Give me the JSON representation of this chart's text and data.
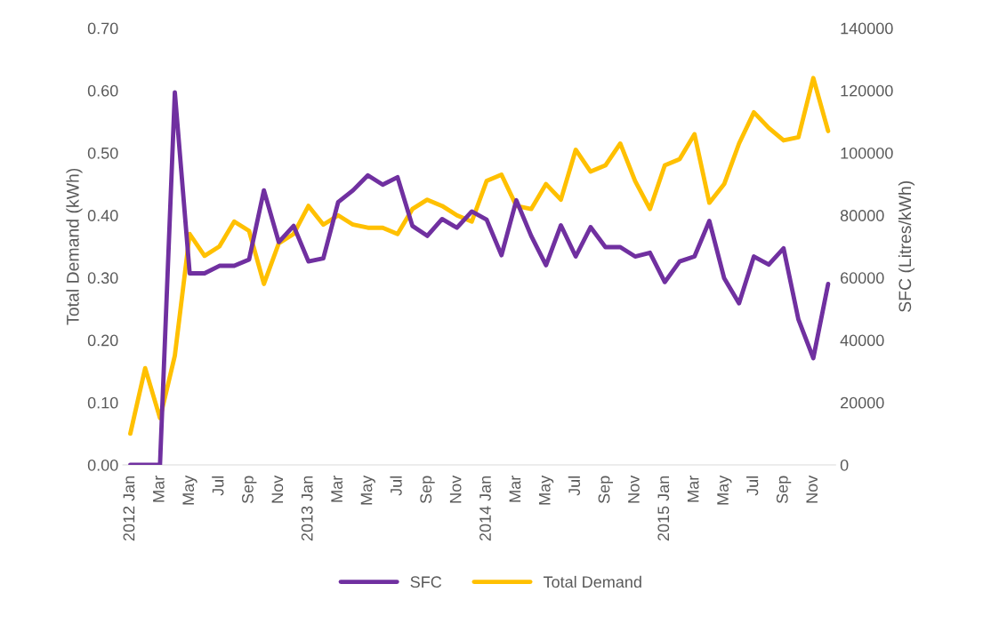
{
  "chart_data": {
    "type": "line",
    "categories": [
      "2012 Jan",
      null,
      "Mar",
      null,
      "May",
      null,
      "Jul",
      null,
      "Sep",
      null,
      "Nov",
      null,
      "2013 Jan",
      null,
      "Mar",
      null,
      "May",
      null,
      "Jul",
      null,
      "Sep",
      null,
      "Nov",
      null,
      "2014 Jan",
      null,
      "Mar",
      null,
      "May",
      null,
      "Jul",
      null,
      "Sep",
      null,
      "Nov",
      null,
      "2015 Jan",
      null,
      "Mar",
      null,
      "May",
      null,
      "Jul",
      null,
      "Sep",
      null,
      "Nov",
      null
    ],
    "series": [
      {
        "name": "SFC",
        "color": "#7030a0",
        "axis": "y2",
        "values": [
          0,
          0,
          0,
          119400,
          61400,
          61400,
          63800,
          63800,
          65800,
          88000,
          71400,
          76600,
          65200,
          66200,
          84200,
          88000,
          92800,
          89800,
          92200,
          76600,
          73400,
          78800,
          76000,
          81200,
          78600,
          67200,
          84800,
          73400,
          64000,
          76800,
          66800,
          76200,
          69800,
          69800,
          66800,
          68000,
          58600,
          65200,
          66800,
          78200,
          59800,
          51800,
          66800,
          64200,
          69400,
          46600,
          34200,
          58000
        ]
      },
      {
        "name": "Total Demand",
        "color": "#ffc000",
        "axis": "y",
        "values": [
          0.05,
          0.155,
          0.075,
          0.175,
          0.37,
          0.335,
          0.35,
          0.39,
          0.375,
          0.29,
          0.355,
          0.37,
          0.415,
          0.385,
          0.4,
          0.385,
          0.38,
          0.38,
          0.37,
          0.41,
          0.425,
          0.415,
          0.4,
          0.39,
          0.455,
          0.465,
          0.415,
          0.41,
          0.45,
          0.425,
          0.505,
          0.47,
          0.48,
          0.515,
          0.455,
          0.41,
          0.48,
          0.49,
          0.53,
          0.42,
          0.45,
          0.515,
          0.565,
          0.54,
          0.52,
          0.525,
          0.62,
          0.535
        ]
      }
    ],
    "ylabel": "Total Demand (kWh)",
    "y2label": "SFC (Litres/kWh)",
    "ylim": [
      0,
      0.7
    ],
    "yticks": [
      {
        "value": 0,
        "label": "0.00"
      },
      {
        "value": 0.1,
        "label": "0.10"
      },
      {
        "value": 0.2,
        "label": "0.20"
      },
      {
        "value": 0.3,
        "label": "0.30"
      },
      {
        "value": 0.4,
        "label": "0.40"
      },
      {
        "value": 0.5,
        "label": "0.50"
      },
      {
        "value": 0.6,
        "label": "0.60"
      },
      {
        "value": 0.7,
        "label": "0.70"
      }
    ],
    "y2lim": [
      0,
      140000
    ],
    "y2ticks": [
      0,
      20000,
      40000,
      60000,
      80000,
      100000,
      120000,
      140000
    ],
    "legend": "bottom",
    "grid": false,
    "marker": "none",
    "line_style": "solid"
  }
}
